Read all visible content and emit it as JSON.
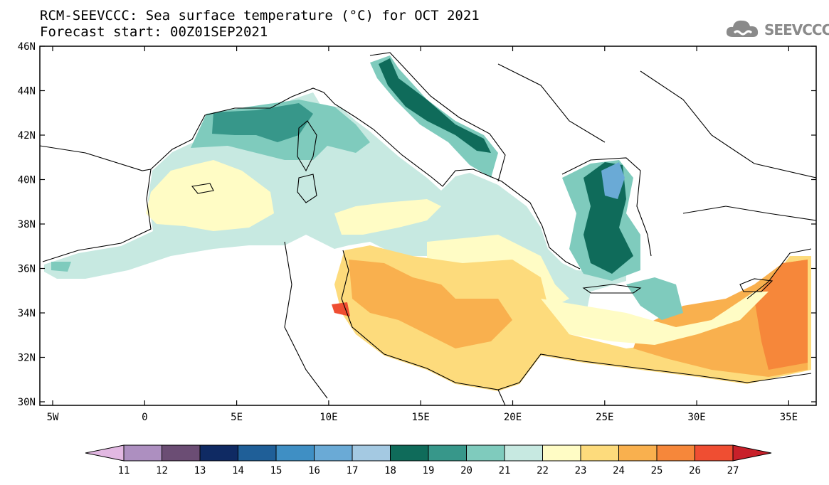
{
  "title": {
    "line1": "RCM-SEEVCCC: Sea surface temperature (°C) for OCT 2021",
    "line2": "Forecast start: 00Z01SEP2021"
  },
  "logo": {
    "text": "SEEVCCC",
    "icon": "cloud-icon"
  },
  "map": {
    "lat_labels": [
      "46N",
      "44N",
      "42N",
      "40N",
      "38N",
      "36N",
      "34N",
      "32N",
      "30N"
    ],
    "lon_labels": [
      "5W",
      "0",
      "5E",
      "10E",
      "15E",
      "20E",
      "25E",
      "30E",
      "35E"
    ]
  },
  "colorbar": {
    "labels": [
      "11",
      "12",
      "13",
      "14",
      "15",
      "16",
      "17",
      "18",
      "19",
      "20",
      "21",
      "22",
      "23",
      "24",
      "25",
      "26",
      "27"
    ],
    "colors": [
      "#e2b8e2",
      "#ad8fc0",
      "#6b4d74",
      "#0f2a63",
      "#1f5f98",
      "#3f8fc4",
      "#6aaad6",
      "#a4c9e2",
      "#0f6b5a",
      "#37978a",
      "#7fcbbd",
      "#c7e9e1",
      "#fffcc5",
      "#fddb7c",
      "#f9b04e",
      "#f6873a",
      "#ef4e32",
      "#c8202a"
    ]
  }
}
